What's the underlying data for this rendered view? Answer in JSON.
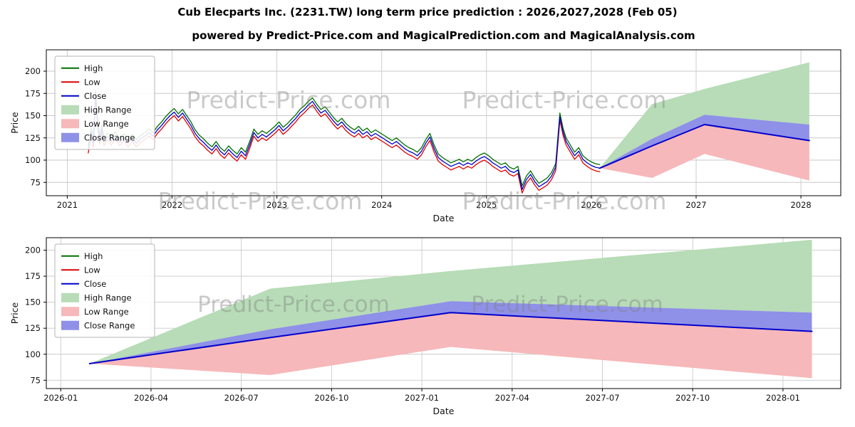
{
  "figure": {
    "title": "Cub Elecparts Inc. (2231.TW) long term price prediction : 2026,2027,2028 (Feb 05)",
    "subtitle": "powered by Predict-Price.com and MagicalPrediction.com and MagicalAnalysis.com",
    "watermark_text": "Predict-Price.com",
    "background": "#ffffff"
  },
  "colors": {
    "high": "#007000",
    "low": "#e00000",
    "close": "#0000cc",
    "high_range": "#b7dcb7",
    "low_range": "#f6b8ba",
    "close_range": "#8f90e8",
    "grid": "#c9c9c9",
    "spine": "#000000",
    "tick_text": "#111111",
    "watermark": "#808080"
  },
  "legend": {
    "entries": [
      {
        "label": "High",
        "type": "line",
        "color_key": "high"
      },
      {
        "label": "Low",
        "type": "line",
        "color_key": "low"
      },
      {
        "label": "Close",
        "type": "line",
        "color_key": "close"
      },
      {
        "label": "High Range",
        "type": "patch",
        "color_key": "high_range"
      },
      {
        "label": "Low Range",
        "type": "patch",
        "color_key": "low_range"
      },
      {
        "label": "Close Range",
        "type": "patch",
        "color_key": "close_range"
      }
    ]
  },
  "chart_data": [
    {
      "id": "history-forecast",
      "type": "line",
      "xlabel": "Date",
      "ylabel": "Price",
      "xlim": [
        2020.8,
        2028.38
      ],
      "ylim": [
        60,
        224
      ],
      "xticks": [
        2021,
        2022,
        2023,
        2024,
        2025,
        2026,
        2027,
        2028
      ],
      "xtick_labels": [
        "2021",
        "2022",
        "2023",
        "2024",
        "2025",
        "2026",
        "2027",
        "2028"
      ],
      "yticks": [
        75,
        100,
        125,
        150,
        175,
        200
      ],
      "grid": true,
      "legend_position": "upper-left",
      "history": {
        "x": [
          2021.2,
          2021.23,
          2021.25,
          2021.27,
          2021.29,
          2021.31,
          2021.33,
          2021.35,
          2021.38,
          2021.42,
          2021.46,
          2021.5,
          2021.54,
          2021.58,
          2021.62,
          2021.66,
          2021.7,
          2021.74,
          2021.78,
          2021.82,
          2021.86,
          2021.9,
          2021.94,
          2021.98,
          2022.02,
          2022.06,
          2022.1,
          2022.14,
          2022.18,
          2022.22,
          2022.26,
          2022.3,
          2022.34,
          2022.38,
          2022.42,
          2022.46,
          2022.5,
          2022.54,
          2022.58,
          2022.62,
          2022.66,
          2022.7,
          2022.74,
          2022.78,
          2022.82,
          2022.86,
          2022.9,
          2022.94,
          2022.98,
          2023.02,
          2023.06,
          2023.1,
          2023.14,
          2023.18,
          2023.22,
          2023.26,
          2023.3,
          2023.34,
          2023.38,
          2023.42,
          2023.46,
          2023.5,
          2023.54,
          2023.58,
          2023.62,
          2023.66,
          2023.7,
          2023.74,
          2023.78,
          2023.82,
          2023.86,
          2023.9,
          2023.94,
          2023.98,
          2024.02,
          2024.06,
          2024.1,
          2024.14,
          2024.18,
          2024.22,
          2024.26,
          2024.3,
          2024.34,
          2024.38,
          2024.42,
          2024.46,
          2024.5,
          2024.54,
          2024.58,
          2024.62,
          2024.66,
          2024.7,
          2024.74,
          2024.78,
          2024.82,
          2024.86,
          2024.9,
          2024.94,
          2024.98,
          2025.02,
          2025.06,
          2025.1,
          2025.14,
          2025.18,
          2025.22,
          2025.26,
          2025.3,
          2025.34,
          2025.38,
          2025.42,
          2025.46,
          2025.5,
          2025.54,
          2025.58,
          2025.62,
          2025.66,
          2025.7,
          2025.73,
          2025.76,
          2025.8,
          2025.84,
          2025.88,
          2025.92,
          2025.96,
          2026.0,
          2026.04,
          2026.08
        ],
        "close": [
          112,
          132,
          118,
          174,
          142,
          122,
          136,
          120,
          127,
          121,
          128,
          120,
          126,
          119,
          125,
          119,
          124,
          127,
          131,
          127,
          134,
          139,
          145,
          150,
          154,
          148,
          153,
          146,
          139,
          130,
          124,
          120,
          115,
          111,
          117,
          110,
          106,
          112,
          107,
          103,
          110,
          105,
          117,
          131,
          125,
          129,
          126,
          130,
          134,
          139,
          133,
          137,
          142,
          147,
          153,
          157,
          162,
          166,
          159,
          153,
          156,
          150,
          144,
          139,
          143,
          137,
          133,
          130,
          134,
          129,
          132,
          127,
          130,
          127,
          124,
          121,
          118,
          121,
          117,
          113,
          110,
          108,
          105,
          110,
          119,
          126,
          113,
          103,
          99,
          96,
          93,
          95,
          97,
          94,
          97,
          95,
          99,
          102,
          104,
          101,
          97,
          94,
          91,
          93,
          88,
          86,
          89,
          67,
          78,
          84,
          76,
          70,
          73,
          76,
          82,
          92,
          149,
          132,
          121,
          113,
          105,
          110,
          101,
          97,
          94,
          92,
          91
        ],
        "high_offset": 4,
        "low_offset": 4
      },
      "forecast": {
        "x": [
          2026.08,
          2026.58,
          2027.08,
          2028.08
        ],
        "x_dates": [
          "2026-02",
          "2026-08",
          "2027-02",
          "2028-02"
        ],
        "close": [
          91,
          116,
          140,
          122
        ],
        "close_upper": [
          91,
          124,
          151,
          140
        ],
        "high_upper": [
          91,
          163,
          180,
          210
        ],
        "low_lower": [
          91,
          80,
          107,
          77
        ]
      }
    },
    {
      "id": "forecast-detail",
      "type": "line",
      "xlabel": "Date",
      "ylabel": "Price",
      "xlim": [
        2025.96,
        2028.16
      ],
      "ylim": [
        67,
        212
      ],
      "xticks": [
        2026.0,
        2026.25,
        2026.5,
        2026.75,
        2027.0,
        2027.25,
        2027.5,
        2027.75,
        2028.0
      ],
      "xtick_labels": [
        "2026-01",
        "2026-04",
        "2026-07",
        "2026-10",
        "2027-01",
        "2027-04",
        "2027-07",
        "2027-10",
        "2028-01"
      ],
      "yticks": [
        75,
        100,
        125,
        150,
        175,
        200
      ],
      "grid": true,
      "legend_position": "upper-left",
      "forecast": {
        "x": [
          2026.08,
          2026.58,
          2027.08,
          2028.08
        ],
        "x_dates": [
          "2026-02",
          "2026-08",
          "2027-02",
          "2028-02"
        ],
        "close": [
          91,
          116,
          140,
          122
        ],
        "close_upper": [
          91,
          124,
          151,
          140
        ],
        "high_upper": [
          91,
          163,
          180,
          210
        ],
        "low_lower": [
          91,
          80,
          107,
          77
        ]
      }
    }
  ]
}
